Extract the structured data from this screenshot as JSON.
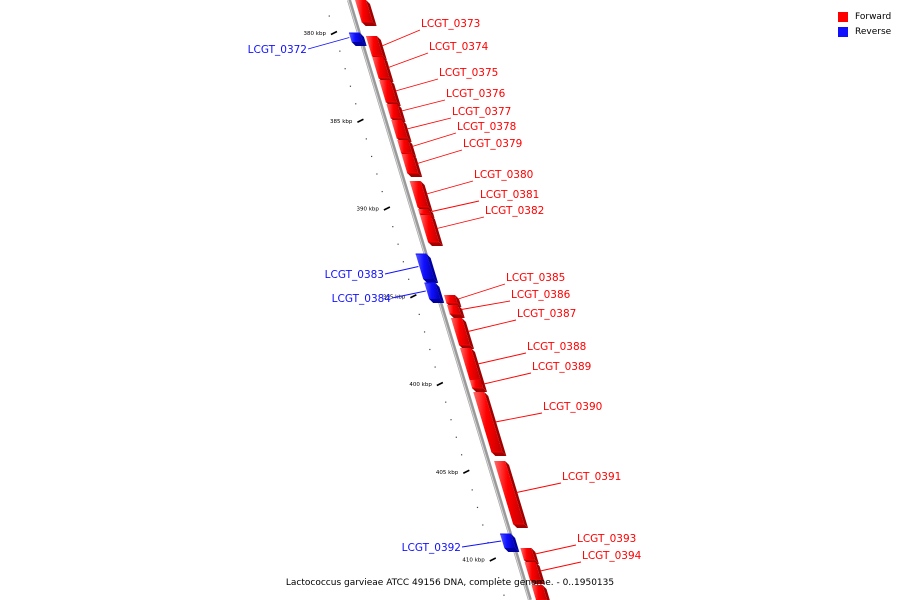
{
  "legend": {
    "forward_label": "Forward",
    "reverse_label": "Reverse",
    "forward_color": "#ff0000",
    "reverse_color": "#1010ff"
  },
  "caption": "Lactococcus garvieae ATCC 49156 DNA, complete genome. - 0..1950135",
  "ruler": [
    {
      "kbp": 380,
      "label": "380 kbp"
    },
    {
      "kbp": 385,
      "label": "385 kbp"
    },
    {
      "kbp": 390,
      "label": "390 kbp"
    },
    {
      "kbp": 395,
      "label": "395 kbp"
    },
    {
      "kbp": 400,
      "label": "400 kbp"
    },
    {
      "kbp": 405,
      "label": "405 kbp"
    },
    {
      "kbp": 410,
      "label": "410 kbp"
    }
  ],
  "genes": [
    {
      "name": "",
      "strand": "forward"
    },
    {
      "name": "LCGT_0372",
      "strand": "reverse"
    },
    {
      "name": "LCGT_0373",
      "strand": "forward"
    },
    {
      "name": "LCGT_0374",
      "strand": "forward"
    },
    {
      "name": "LCGT_0375",
      "strand": "forward"
    },
    {
      "name": "LCGT_0376",
      "strand": "forward"
    },
    {
      "name": "LCGT_0377",
      "strand": "forward"
    },
    {
      "name": "LCGT_0378",
      "strand": "forward"
    },
    {
      "name": "LCGT_0379",
      "strand": "forward"
    },
    {
      "name": "LCGT_0380",
      "strand": "forward"
    },
    {
      "name": "LCGT_0381",
      "strand": "forward"
    },
    {
      "name": "LCGT_0382",
      "strand": "forward"
    },
    {
      "name": "LCGT_0383",
      "strand": "reverse"
    },
    {
      "name": "LCGT_0384",
      "strand": "reverse"
    },
    {
      "name": "LCGT_0385",
      "strand": "forward"
    },
    {
      "name": "LCGT_0386",
      "strand": "forward"
    },
    {
      "name": "LCGT_0387",
      "strand": "forward"
    },
    {
      "name": "LCGT_0388",
      "strand": "forward"
    },
    {
      "name": "LCGT_0389",
      "strand": "forward"
    },
    {
      "name": "LCGT_0390",
      "strand": "forward"
    },
    {
      "name": "LCGT_0391",
      "strand": "forward"
    },
    {
      "name": "LCGT_0392",
      "strand": "reverse"
    },
    {
      "name": "LCGT_0393",
      "strand": "forward"
    },
    {
      "name": "LCGT_0394",
      "strand": "forward"
    },
    {
      "name": "",
      "strand": "forward"
    }
  ]
}
